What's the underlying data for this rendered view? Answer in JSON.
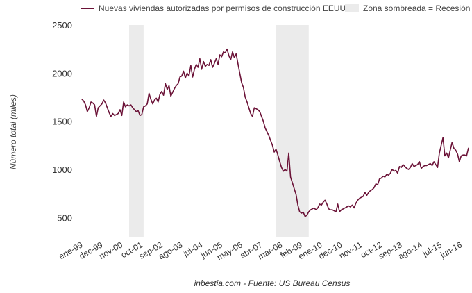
{
  "chart_data": {
    "type": "line",
    "legend": {
      "series_label": "Nuevas viviendas autorizadas por permisos de construcción EEUU",
      "recession_label": "Zona sombreada = Recesión",
      "placement": "top"
    },
    "ylabel": "Número total (miles)",
    "xlabel": "",
    "source": "inbestia.com - Fuente: US Bureau Census",
    "ylim": [
      300,
      2500
    ],
    "yticks": [
      500,
      1000,
      1500,
      2000,
      2500
    ],
    "x_range": [
      "1999-01",
      "2016-07"
    ],
    "xticks": [
      {
        "date": "1999-01",
        "label": "ene-99"
      },
      {
        "date": "1999-12",
        "label": "dec-99"
      },
      {
        "date": "2000-11",
        "label": "nov-00"
      },
      {
        "date": "2001-10",
        "label": "oct-01"
      },
      {
        "date": "2002-09",
        "label": "sep-02"
      },
      {
        "date": "2003-08",
        "label": "ago-03"
      },
      {
        "date": "2004-07",
        "label": "jul-04"
      },
      {
        "date": "2005-06",
        "label": "jun-05"
      },
      {
        "date": "2006-05",
        "label": "may-06"
      },
      {
        "date": "2007-04",
        "label": "abr-07"
      },
      {
        "date": "2008-03",
        "label": "mar-08"
      },
      {
        "date": "2009-02",
        "label": "feb-09"
      },
      {
        "date": "2010-01",
        "label": "ene-10"
      },
      {
        "date": "2010-12",
        "label": "dec-10"
      },
      {
        "date": "2011-11",
        "label": "nov-11"
      },
      {
        "date": "2012-10",
        "label": "oct-12"
      },
      {
        "date": "2013-09",
        "label": "sep-13"
      },
      {
        "date": "2014-08",
        "label": "ago-14"
      },
      {
        "date": "2015-07",
        "label": "jul-15"
      },
      {
        "date": "2016-06",
        "label": "jun-16"
      }
    ],
    "recessions": [
      {
        "start": "2001-03",
        "end": "2001-11"
      },
      {
        "start": "2007-12",
        "end": "2009-06"
      }
    ],
    "series": [
      {
        "name": "Nuevas viviendas autorizadas por permisos de construcción EEUU",
        "color": "#6b1237",
        "points": [
          [
            "1999-01",
            1730
          ],
          [
            "1999-02",
            1710
          ],
          [
            "1999-03",
            1670
          ],
          [
            "1999-04",
            1600
          ],
          [
            "1999-05",
            1640
          ],
          [
            "1999-06",
            1700
          ],
          [
            "1999-07",
            1690
          ],
          [
            "1999-08",
            1670
          ],
          [
            "1999-09",
            1550
          ],
          [
            "1999-10",
            1640
          ],
          [
            "1999-11",
            1660
          ],
          [
            "1999-12",
            1680
          ],
          [
            "2000-01",
            1720
          ],
          [
            "2000-02",
            1690
          ],
          [
            "2000-03",
            1640
          ],
          [
            "2000-04",
            1590
          ],
          [
            "2000-05",
            1550
          ],
          [
            "2000-06",
            1580
          ],
          [
            "2000-07",
            1560
          ],
          [
            "2000-08",
            1570
          ],
          [
            "2000-09",
            1580
          ],
          [
            "2000-10",
            1620
          ],
          [
            "2000-11",
            1560
          ],
          [
            "2000-12",
            1700
          ],
          [
            "2001-01",
            1650
          ],
          [
            "2001-02",
            1670
          ],
          [
            "2001-03",
            1660
          ],
          [
            "2001-04",
            1670
          ],
          [
            "2001-05",
            1640
          ],
          [
            "2001-06",
            1620
          ],
          [
            "2001-07",
            1600
          ],
          [
            "2001-08",
            1610
          ],
          [
            "2001-09",
            1560
          ],
          [
            "2001-10",
            1570
          ],
          [
            "2001-11",
            1650
          ],
          [
            "2001-12",
            1660
          ],
          [
            "2002-01",
            1680
          ],
          [
            "2002-02",
            1790
          ],
          [
            "2002-03",
            1730
          ],
          [
            "2002-04",
            1680
          ],
          [
            "2002-05",
            1720
          ],
          [
            "2002-06",
            1740
          ],
          [
            "2002-07",
            1700
          ],
          [
            "2002-08",
            1780
          ],
          [
            "2002-09",
            1810
          ],
          [
            "2002-10",
            1770
          ],
          [
            "2002-11",
            1890
          ],
          [
            "2002-12",
            1830
          ],
          [
            "2003-01",
            1870
          ],
          [
            "2003-02",
            1760
          ],
          [
            "2003-03",
            1800
          ],
          [
            "2003-04",
            1840
          ],
          [
            "2003-05",
            1870
          ],
          [
            "2003-06",
            1890
          ],
          [
            "2003-07",
            1960
          ],
          [
            "2003-08",
            1970
          ],
          [
            "2003-09",
            2020
          ],
          [
            "2003-10",
            1950
          ],
          [
            "2003-11",
            2000
          ],
          [
            "2003-12",
            1970
          ],
          [
            "2004-01",
            2080
          ],
          [
            "2004-02",
            1960
          ],
          [
            "2004-03",
            2040
          ],
          [
            "2004-04",
            2090
          ],
          [
            "2004-05",
            2060
          ],
          [
            "2004-06",
            2150
          ],
          [
            "2004-07",
            2040
          ],
          [
            "2004-08",
            2120
          ],
          [
            "2004-09",
            2070
          ],
          [
            "2004-10",
            2090
          ],
          [
            "2004-11",
            2080
          ],
          [
            "2004-12",
            2140
          ],
          [
            "2005-01",
            2060
          ],
          [
            "2005-02",
            2100
          ],
          [
            "2005-03",
            2150
          ],
          [
            "2005-04",
            2090
          ],
          [
            "2005-05",
            2190
          ],
          [
            "2005-06",
            2170
          ],
          [
            "2005-07",
            2220
          ],
          [
            "2005-08",
            2210
          ],
          [
            "2005-09",
            2250
          ],
          [
            "2005-10",
            2180
          ],
          [
            "2005-11",
            2140
          ],
          [
            "2005-12",
            2220
          ],
          [
            "2006-01",
            2160
          ],
          [
            "2006-02",
            2200
          ],
          [
            "2006-03",
            2100
          ],
          [
            "2006-04",
            2000
          ],
          [
            "2006-05",
            1900
          ],
          [
            "2006-06",
            1850
          ],
          [
            "2006-07",
            1750
          ],
          [
            "2006-08",
            1700
          ],
          [
            "2006-09",
            1640
          ],
          [
            "2006-10",
            1580
          ],
          [
            "2006-11",
            1550
          ],
          [
            "2006-12",
            1640
          ],
          [
            "2007-01",
            1630
          ],
          [
            "2007-02",
            1620
          ],
          [
            "2007-03",
            1600
          ],
          [
            "2007-04",
            1550
          ],
          [
            "2007-05",
            1500
          ],
          [
            "2007-06",
            1430
          ],
          [
            "2007-07",
            1390
          ],
          [
            "2007-08",
            1350
          ],
          [
            "2007-09",
            1300
          ],
          [
            "2007-10",
            1250
          ],
          [
            "2007-11",
            1180
          ],
          [
            "2007-12",
            1210
          ],
          [
            "2008-01",
            1150
          ],
          [
            "2008-02",
            1080
          ],
          [
            "2008-03",
            1020
          ],
          [
            "2008-04",
            980
          ],
          [
            "2008-05",
            1000
          ],
          [
            "2008-06",
            980
          ],
          [
            "2008-07",
            1170
          ],
          [
            "2008-08",
            920
          ],
          [
            "2008-09",
            860
          ],
          [
            "2008-10",
            800
          ],
          [
            "2008-11",
            740
          ],
          [
            "2008-12",
            630
          ],
          [
            "2009-01",
            560
          ],
          [
            "2009-02",
            545
          ],
          [
            "2009-03",
            555
          ],
          [
            "2009-04",
            510
          ],
          [
            "2009-05",
            525
          ],
          [
            "2009-06",
            560
          ],
          [
            "2009-07",
            580
          ],
          [
            "2009-08",
            590
          ],
          [
            "2009-09",
            600
          ],
          [
            "2009-10",
            580
          ],
          [
            "2009-11",
            600
          ],
          [
            "2009-12",
            640
          ],
          [
            "2010-01",
            630
          ],
          [
            "2010-02",
            660
          ],
          [
            "2010-03",
            680
          ],
          [
            "2010-04",
            640
          ],
          [
            "2010-05",
            590
          ],
          [
            "2010-06",
            580
          ],
          [
            "2010-07",
            580
          ],
          [
            "2010-08",
            570
          ],
          [
            "2010-09",
            560
          ],
          [
            "2010-10",
            640
          ],
          [
            "2010-11",
            560
          ],
          [
            "2010-12",
            580
          ],
          [
            "2011-01",
            590
          ],
          [
            "2011-02",
            600
          ],
          [
            "2011-03",
            610
          ],
          [
            "2011-04",
            620
          ],
          [
            "2011-05",
            610
          ],
          [
            "2011-06",
            630
          ],
          [
            "2011-07",
            600
          ],
          [
            "2011-08",
            650
          ],
          [
            "2011-09",
            680
          ],
          [
            "2011-10",
            700
          ],
          [
            "2011-11",
            710
          ],
          [
            "2011-12",
            720
          ],
          [
            "2012-01",
            760
          ],
          [
            "2012-02",
            730
          ],
          [
            "2012-03",
            760
          ],
          [
            "2012-04",
            780
          ],
          [
            "2012-05",
            790
          ],
          [
            "2012-06",
            810
          ],
          [
            "2012-07",
            850
          ],
          [
            "2012-08",
            840
          ],
          [
            "2012-09",
            900
          ],
          [
            "2012-10",
            910
          ],
          [
            "2012-11",
            930
          ],
          [
            "2012-12",
            920
          ],
          [
            "2013-01",
            950
          ],
          [
            "2013-02",
            940
          ],
          [
            "2013-03",
            960
          ],
          [
            "2013-04",
            1000
          ],
          [
            "2013-05",
            980
          ],
          [
            "2013-06",
            990
          ],
          [
            "2013-07",
            960
          ],
          [
            "2013-08",
            1030
          ],
          [
            "2013-09",
            1020
          ],
          [
            "2013-10",
            1050
          ],
          [
            "2013-11",
            1030
          ],
          [
            "2013-12",
            1010
          ],
          [
            "2014-01",
            1000
          ],
          [
            "2014-02",
            1020
          ],
          [
            "2014-03",
            1060
          ],
          [
            "2014-04",
            1030
          ],
          [
            "2014-05",
            1040
          ],
          [
            "2014-06",
            1050
          ],
          [
            "2014-07",
            1080
          ],
          [
            "2014-08",
            1010
          ],
          [
            "2014-09",
            1030
          ],
          [
            "2014-10",
            1040
          ],
          [
            "2014-11",
            1040
          ],
          [
            "2014-12",
            1050
          ],
          [
            "2015-01",
            1060
          ],
          [
            "2015-02",
            1040
          ],
          [
            "2015-03",
            1080
          ],
          [
            "2015-04",
            1050
          ],
          [
            "2015-05",
            1020
          ],
          [
            "2015-06",
            1170
          ],
          [
            "2015-07",
            1250
          ],
          [
            "2015-08",
            1330
          ],
          [
            "2015-09",
            1140
          ],
          [
            "2015-10",
            1170
          ],
          [
            "2015-11",
            1120
          ],
          [
            "2015-12",
            1200
          ],
          [
            "2016-01",
            1280
          ],
          [
            "2016-02",
            1220
          ],
          [
            "2016-03",
            1200
          ],
          [
            "2016-04",
            1160
          ],
          [
            "2016-05",
            1080
          ],
          [
            "2016-06",
            1140
          ],
          [
            "2016-07",
            1150
          ],
          [
            "2016-08",
            1150
          ],
          [
            "2016-09",
            1140
          ],
          [
            "2016-10",
            1220
          ]
        ]
      }
    ],
    "grid": false
  }
}
